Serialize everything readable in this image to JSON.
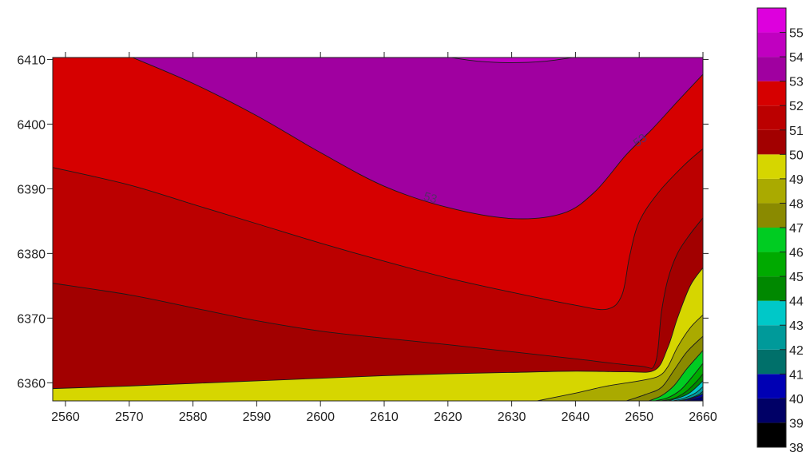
{
  "chart_data": {
    "type": "contour",
    "title": "",
    "xlabel": "",
    "ylabel": "",
    "xlim": [
      2558,
      2660
    ],
    "ylim": [
      6357.2,
      6410.3
    ],
    "x_ticks": [
      2560,
      2570,
      2580,
      2590,
      2600,
      2610,
      2620,
      2630,
      2640,
      2650,
      2660
    ],
    "y_ticks": [
      6360,
      6370,
      6380,
      6390,
      6400,
      6410
    ],
    "grid": false,
    "legend_position": "right",
    "colorbar": {
      "levels": [
        38,
        39,
        40,
        41,
        42,
        43,
        44,
        45,
        46,
        47,
        48,
        49,
        50,
        51,
        52,
        53,
        54,
        55,
        56
      ],
      "labels": [
        "55",
        "54",
        "53",
        "52",
        "51",
        "50",
        "49",
        "48",
        "47",
        "46",
        "45",
        "44",
        "43",
        "42",
        "41",
        "40",
        "39",
        "38"
      ],
      "colors": [
        "#000000",
        "#000066",
        "#0000b4",
        "#00706a",
        "#009a9a",
        "#00c8c8",
        "#008800",
        "#00aa00",
        "#00cc22",
        "#8a8a00",
        "#aaaa00",
        "#d6d600",
        "#a20000",
        "#bb0000",
        "#d60000",
        "#a000a0",
        "#c000c0",
        "#dd00dd"
      ]
    },
    "bands": [
      {
        "range": [
          53,
          54
        ],
        "color": "#a000a0",
        "boundary": [
          [
            2570.5,
            6410.3
          ],
          [
            2580,
            6406.3
          ],
          [
            2590,
            6401.3
          ],
          [
            2600,
            6395.6
          ],
          [
            2610,
            6390.4
          ],
          [
            2620,
            6387.1
          ],
          [
            2630,
            6385.4
          ],
          [
            2638,
            6386.2
          ],
          [
            2643,
            6389.5
          ],
          [
            2648,
            6395.3
          ],
          [
            2652,
            6399.2
          ],
          [
            2656,
            6403.5
          ],
          [
            2660,
            6407.7
          ],
          [
            2660,
            6410.3
          ]
        ]
      },
      {
        "range": [
          54,
          55
        ],
        "color": "#c000c0",
        "boundary": [
          [
            2620.5,
            6410.3
          ],
          [
            2625,
            6409.7
          ],
          [
            2630,
            6409.5
          ],
          [
            2635,
            6409.7
          ],
          [
            2639.5,
            6410.3
          ]
        ]
      },
      {
        "range": [
          51,
          52
        ],
        "color": "#bb0000",
        "boundary": [
          [
            2558,
            6393.3
          ],
          [
            2570,
            6390.6
          ],
          [
            2580,
            6387.6
          ],
          [
            2590,
            6384.6
          ],
          [
            2600,
            6381.6
          ],
          [
            2610,
            6378.8
          ],
          [
            2620,
            6376.2
          ],
          [
            2630,
            6374.0
          ],
          [
            2640,
            6372.0
          ],
          [
            2645,
            6371.4
          ],
          [
            2647.3,
            6373.6
          ],
          [
            2648.5,
            6379.6
          ],
          [
            2650,
            6384.9
          ],
          [
            2653,
            6389.4
          ],
          [
            2657,
            6393.6
          ],
          [
            2660,
            6396.2
          ],
          [
            2660,
            6357.2
          ],
          [
            2558,
            6357.2
          ]
        ]
      },
      {
        "range": [
          50,
          51
        ],
        "color": "#a20000",
        "boundary": [
          [
            2558,
            6375.4
          ],
          [
            2570,
            6373.6
          ],
          [
            2580,
            6371.6
          ],
          [
            2590,
            6369.6
          ],
          [
            2600,
            6368.0
          ],
          [
            2610,
            6366.9
          ],
          [
            2620,
            6365.9
          ],
          [
            2630,
            6364.8
          ],
          [
            2640,
            6363.7
          ],
          [
            2650,
            6362.6
          ],
          [
            2652.5,
            6363.0
          ],
          [
            2653.5,
            6371.0
          ],
          [
            2654.5,
            6376.0
          ],
          [
            2656,
            6380.0
          ],
          [
            2658,
            6383.0
          ],
          [
            2660,
            6385.5
          ],
          [
            2660,
            6357.2
          ],
          [
            2558,
            6357.2
          ]
        ]
      },
      {
        "range": [
          49,
          50
        ],
        "color": "#d6d600",
        "boundary": [
          [
            2558,
            6359.1
          ],
          [
            2570,
            6359.5
          ],
          [
            2580,
            6359.9
          ],
          [
            2590,
            6360.3
          ],
          [
            2600,
            6360.7
          ],
          [
            2610,
            6361.1
          ],
          [
            2620,
            6361.4
          ],
          [
            2630,
            6361.6
          ],
          [
            2640,
            6361.8
          ],
          [
            2648,
            6361.7
          ],
          [
            2652.5,
            6362.0
          ],
          [
            2654.5,
            6365.5
          ],
          [
            2656,
            6370.0
          ],
          [
            2658,
            6375.0
          ],
          [
            2660,
            6377.8
          ],
          [
            2660,
            6357.2
          ],
          [
            2558,
            6357.2
          ]
        ]
      },
      {
        "range": [
          48,
          49
        ],
        "color": "#aaaa00",
        "boundary": [
          [
            2634,
            6357.2
          ],
          [
            2640,
            6358.4
          ],
          [
            2645,
            6359.5
          ],
          [
            2650,
            6360.3
          ],
          [
            2653,
            6361.0
          ],
          [
            2654.5,
            6362.5
          ],
          [
            2656,
            6365.5
          ],
          [
            2658,
            6368.5
          ],
          [
            2660,
            6370.5
          ],
          [
            2660,
            6357.2
          ]
        ]
      },
      {
        "range": [
          47,
          48
        ],
        "color": "#8a8a00",
        "boundary": [
          [
            2648,
            6357.2
          ],
          [
            2651,
            6358.2
          ],
          [
            2653.5,
            6359.3
          ],
          [
            2655.5,
            6362.0
          ],
          [
            2657.5,
            6364.8
          ],
          [
            2660,
            6367.2
          ],
          [
            2660,
            6357.2
          ]
        ]
      },
      {
        "range": [
          46,
          47
        ],
        "color": "#00cc22",
        "boundary": [
          [
            2651.5,
            6357.2
          ],
          [
            2653.5,
            6358.0
          ],
          [
            2655.5,
            6359.6
          ],
          [
            2657.5,
            6362.2
          ],
          [
            2660,
            6365.0
          ],
          [
            2660,
            6357.2
          ]
        ]
      },
      {
        "range": [
          45,
          46
        ],
        "color": "#00aa00",
        "boundary": [
          [
            2652.5,
            6357.2
          ],
          [
            2654.5,
            6357.7
          ],
          [
            2656.5,
            6358.9
          ],
          [
            2658.3,
            6360.9
          ],
          [
            2660,
            6363.0
          ],
          [
            2660,
            6357.2
          ]
        ]
      },
      {
        "range": [
          44,
          45
        ],
        "color": "#008800",
        "boundary": [
          [
            2653.5,
            6357.2
          ],
          [
            2655.5,
            6357.6
          ],
          [
            2657.3,
            6358.6
          ],
          [
            2659,
            6360.2
          ],
          [
            2660,
            6361.4
          ],
          [
            2660,
            6357.2
          ]
        ]
      },
      {
        "range": [
          43,
          44
        ],
        "color": "#00c8c8",
        "boundary": [
          [
            2654.5,
            6357.2
          ],
          [
            2656.3,
            6357.7
          ],
          [
            2658,
            6358.5
          ],
          [
            2660,
            6360.3
          ],
          [
            2660,
            6357.2
          ]
        ]
      },
      {
        "range": [
          42,
          43
        ],
        "color": "#009a9a",
        "boundary": [
          [
            2655.3,
            6357.2
          ],
          [
            2657,
            6357.6
          ],
          [
            2658.8,
            6358.4
          ],
          [
            2660,
            6359.4
          ],
          [
            2660,
            6357.2
          ]
        ]
      },
      {
        "range": [
          41,
          42
        ],
        "color": "#00706a",
        "boundary": [
          [
            2656,
            6357.2
          ],
          [
            2657.6,
            6357.5
          ],
          [
            2659.2,
            6358.1
          ],
          [
            2660,
            6358.7
          ],
          [
            2660,
            6357.2
          ]
        ]
      },
      {
        "range": [
          40,
          41
        ],
        "color": "#0000b4",
        "boundary": [
          [
            2656.6,
            6357.2
          ],
          [
            2658.2,
            6357.6
          ],
          [
            2659.4,
            6358.0
          ],
          [
            2660,
            6358.3
          ],
          [
            2660,
            6357.2
          ]
        ]
      },
      {
        "range": [
          39,
          40
        ],
        "color": "#000066",
        "boundary": [
          [
            2657.4,
            6357.2
          ],
          [
            2658.6,
            6357.5
          ],
          [
            2659.6,
            6357.7
          ],
          [
            2660,
            6357.9
          ],
          [
            2660,
            6357.2
          ]
        ]
      }
    ],
    "contour_labels": [
      {
        "text": "53",
        "x": 2617.2,
        "y": 6388.5,
        "angle": 16
      },
      {
        "text": "53",
        "x": 2650.2,
        "y": 6397.4,
        "angle": -38
      }
    ]
  }
}
